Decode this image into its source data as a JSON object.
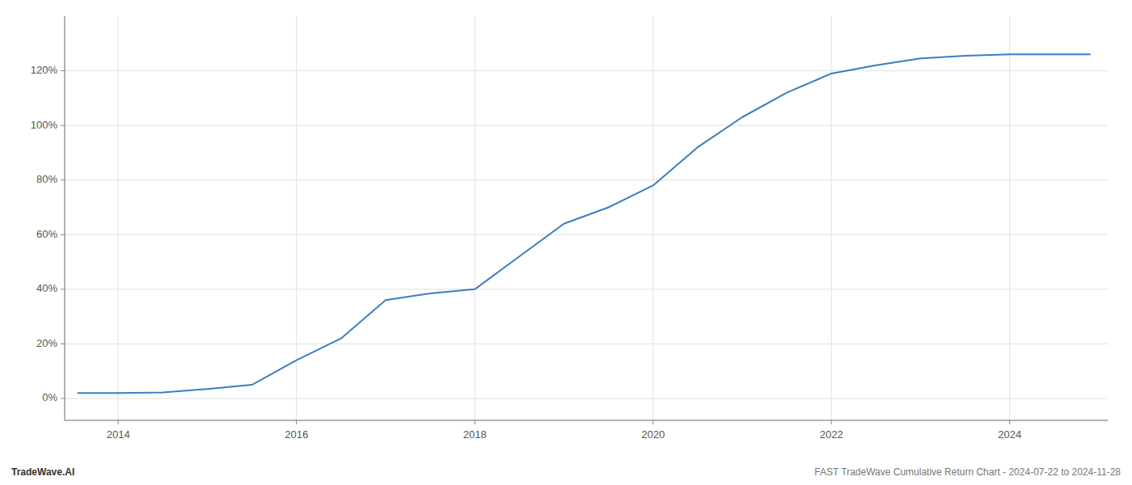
{
  "chart_data": {
    "type": "line",
    "x": [
      2013.55,
      2014.0,
      2014.5,
      2015.0,
      2015.5,
      2016.0,
      2016.5,
      2017.0,
      2017.5,
      2018.0,
      2018.5,
      2019.0,
      2019.5,
      2020.0,
      2020.5,
      2021.0,
      2021.5,
      2022.0,
      2022.5,
      2023.0,
      2023.5,
      2024.0,
      2024.5,
      2024.9
    ],
    "values": [
      2.0,
      2.0,
      2.2,
      3.5,
      5.0,
      14.0,
      22.0,
      36.0,
      38.5,
      40.0,
      52.0,
      64.0,
      70.0,
      78.0,
      92.0,
      103.0,
      112.0,
      119.0,
      122.0,
      124.5,
      125.5,
      126.0,
      126.0,
      126.0
    ],
    "color": "#3a7ebf",
    "xlim": [
      2013.4,
      2025.1
    ],
    "xticks": [
      2014,
      2016,
      2018,
      2020,
      2022,
      2024
    ],
    "ylim": [
      -8,
      140
    ],
    "yticks": [
      {
        "value": 0,
        "label": "0%"
      },
      {
        "value": 20,
        "label": "20%"
      },
      {
        "value": 40,
        "label": "40%"
      },
      {
        "value": 60,
        "label": "60%"
      },
      {
        "value": 80,
        "label": "80%"
      },
      {
        "value": 100,
        "label": "100%"
      },
      {
        "value": 120,
        "label": "120%"
      }
    ],
    "grid": true,
    "annotations": [
      "TradeWave.AI",
      "FAST TradeWave Cumulative Return Chart - 2024-07-22 to 2024-11-28"
    ]
  }
}
